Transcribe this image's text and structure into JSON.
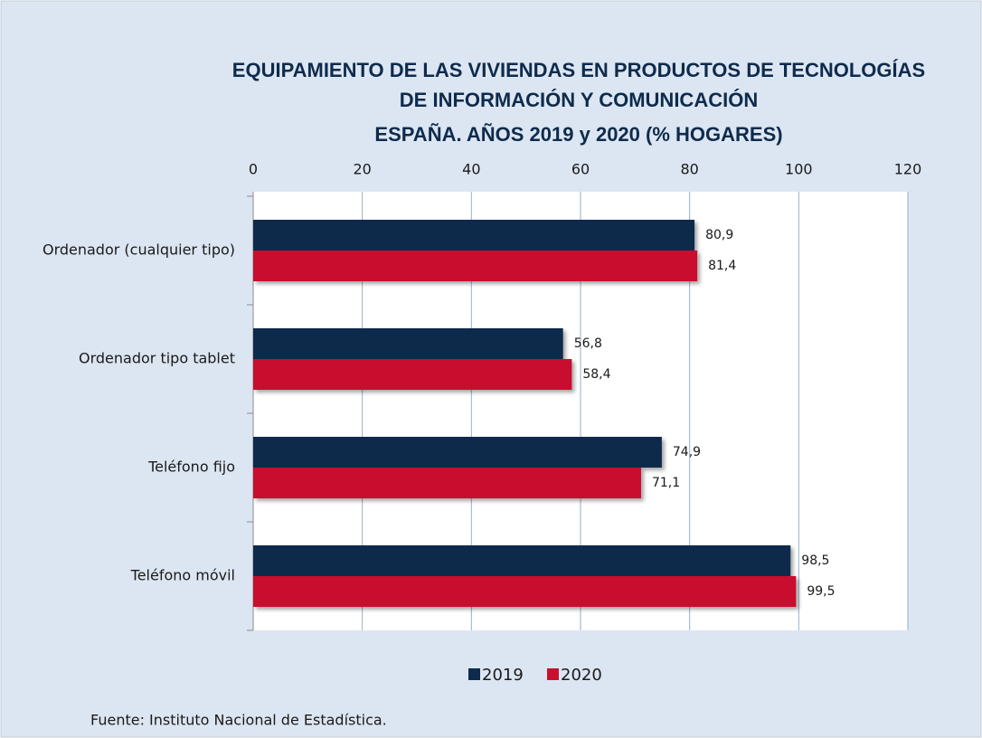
{
  "chart_data": {
    "type": "bar",
    "orientation": "horizontal",
    "title": [
      "EQUIPAMIENTO DE LAS VIVIENDAS EN PRODUCTOS DE TECNOLOGÍAS",
      "DE INFORMACIÓN Y COMUNICACIÓN",
      "ESPAÑA. AÑOS 2019 y 2020 (% HOGARES)"
    ],
    "categories": [
      "Ordenador (cualquier tipo)",
      "Ordenador tipo tablet",
      "Teléfono fijo",
      "Teléfono móvil"
    ],
    "series": [
      {
        "name": "2019",
        "color": "#0e2b4c",
        "values": [
          80.9,
          56.8,
          74.9,
          98.5
        ],
        "value_labels": [
          "80,9",
          "56,8",
          "74,9",
          "98,5"
        ]
      },
      {
        "name": "2020",
        "color": "#c8102e",
        "values": [
          81.4,
          58.4,
          71.1,
          99.5
        ],
        "value_labels": [
          "81,4",
          "58,4",
          "71,1",
          "99,5"
        ]
      }
    ],
    "xlim": [
      0,
      120
    ],
    "xticks": [
      0,
      20,
      40,
      60,
      80,
      100,
      120
    ],
    "grid": true,
    "legend": "bottom",
    "source": "Fuente: Instituto Nacional de Estadística."
  }
}
